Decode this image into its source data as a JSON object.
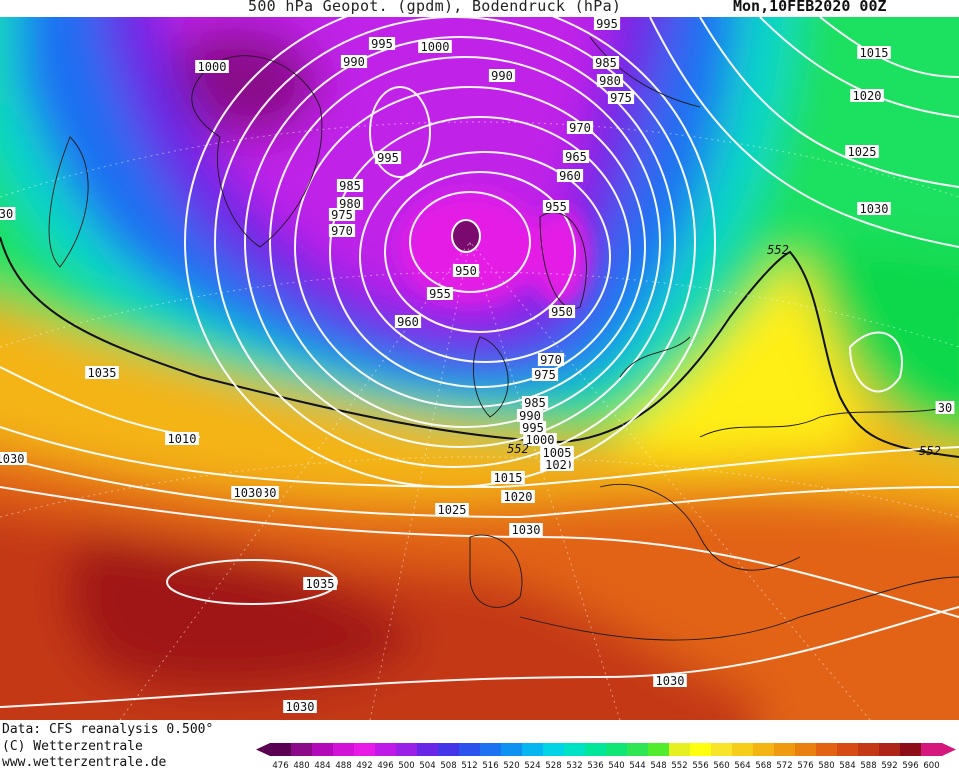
{
  "header": {
    "title": "500 hPa Geopot. (gpdm), Bodendruck (hPa)",
    "date": "Mon,10FEB2020 00Z"
  },
  "footer": {
    "data_line": "Data: CFS reanalysis 0.500°",
    "copyright_line": "(C) Wetterzentrale",
    "url_line": "www.wetterzentrale.de"
  },
  "map": {
    "type": "geopotential-height-and-surface-pressure",
    "geopotential_unit": "gpdm",
    "pressure_unit": "hPa",
    "geopotential_contour": 552,
    "geopotential_contour_labels": [
      "552",
      "552",
      "552"
    ],
    "isobar_labels": [
      "995",
      "1000",
      "990",
      "1000",
      "995",
      "985",
      "990",
      "980",
      "975",
      "1015",
      "1020",
      "970",
      "995",
      "965",
      "1025",
      "960",
      "985",
      "980",
      "975",
      "970",
      "955",
      "1030",
      "950",
      "955",
      "950",
      "960",
      "970",
      "975",
      "985",
      "990",
      "995",
      "1000",
      "1005",
      "1010",
      "1015",
      "1020",
      "1025",
      "1030",
      "1035",
      "1030",
      "1030",
      "1030",
      "1030",
      "1035",
      "1030",
      "1030",
      "30",
      "30",
      "102",
      "1010"
    ],
    "low_center_hpa": 950,
    "high_center_hpa": 1035
  },
  "scale": {
    "values": [
      "476",
      "480",
      "484",
      "488",
      "492",
      "496",
      "500",
      "504",
      "508",
      "512",
      "516",
      "520",
      "524",
      "528",
      "532",
      "536",
      "540",
      "544",
      "548",
      "552",
      "556",
      "560",
      "564",
      "568",
      "572",
      "576",
      "580",
      "584",
      "588",
      "592",
      "596",
      "600"
    ],
    "colors": [
      "#5a0052",
      "#8a0a8a",
      "#b20ab8",
      "#d212d6",
      "#e81ae6",
      "#c01ae8",
      "#9a20e8",
      "#6a26e6",
      "#4436e8",
      "#2c52ee",
      "#1c72f0",
      "#0e92f2",
      "#06b6f0",
      "#00d4e6",
      "#00e2c4",
      "#00e69a",
      "#10e676",
      "#2ee654",
      "#52ec2e",
      "#e6f020",
      "#ffff10",
      "#f8e428",
      "#f6ce1a",
      "#f4b414",
      "#f09a10",
      "#ea8010",
      "#e26412",
      "#d64c14",
      "#c43816",
      "#ae2418",
      "#8c0c18",
      "#d6187e"
    ]
  }
}
